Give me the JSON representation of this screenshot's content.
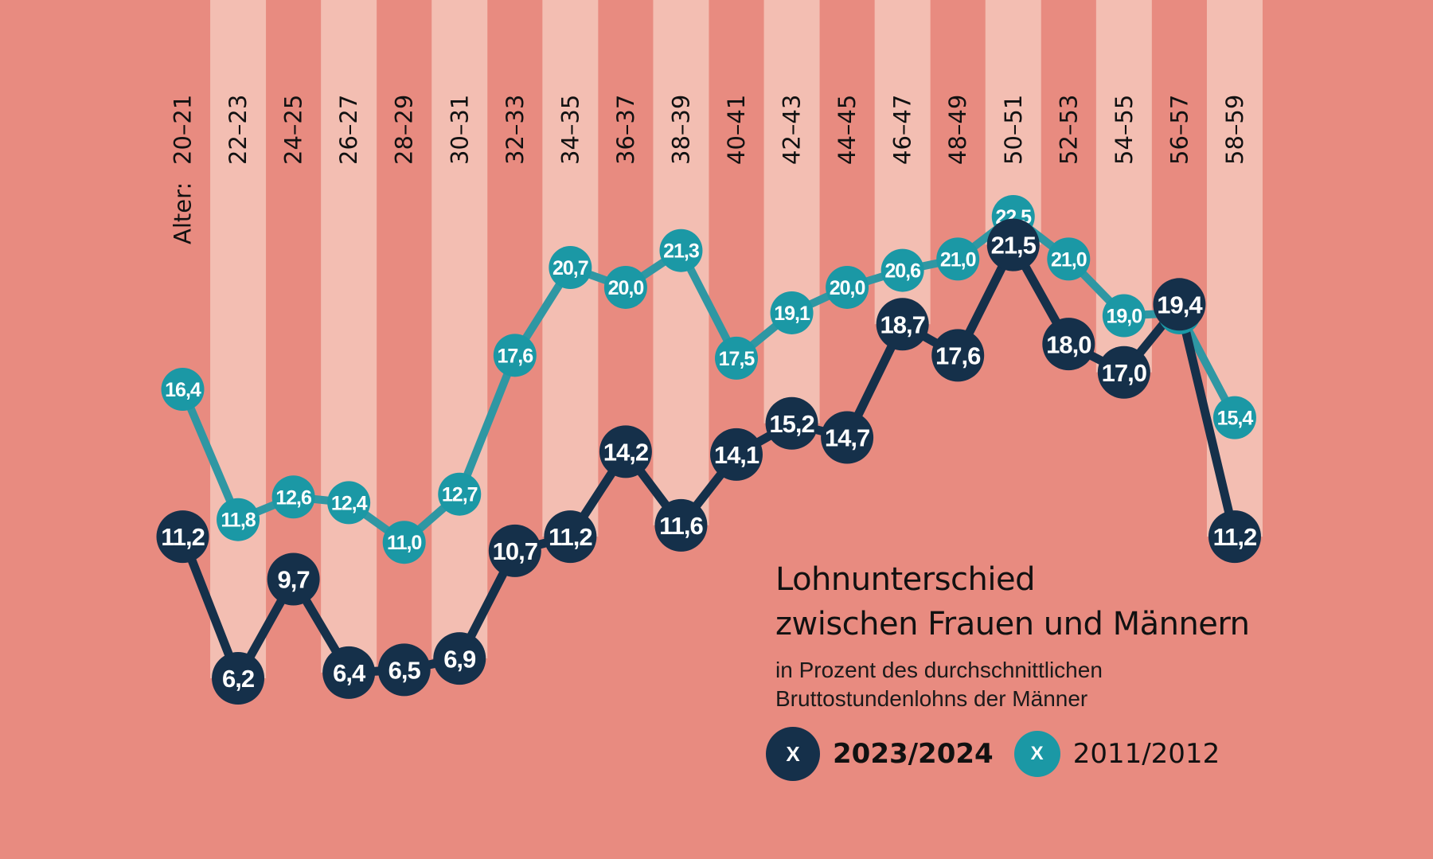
{
  "colors": {
    "background": "#e88b80",
    "stripe_light": "#f3beb2",
    "series_2023": "#15304a",
    "series_2011": "#1b98a5",
    "line_2011": "#2f97a3"
  },
  "chart_data": {
    "type": "line",
    "title": "Lohnunterschied zwischen Frauen und Männern",
    "subtitle": "in Prozent des durchschnittlichen Bruttostundenlohns der Männer",
    "xlabel": "Alter:",
    "ylabel": "",
    "ylim": [
      6.2,
      22.5
    ],
    "grid": false,
    "legend_position": "bottom-right",
    "categories": [
      "20–21",
      "22–23",
      "24–25",
      "26–27",
      "28–29",
      "30–31",
      "32–33",
      "34–35",
      "36–37",
      "38–39",
      "40–41",
      "42–43",
      "44–45",
      "46–47",
      "48–49",
      "50–51",
      "52–53",
      "54–55",
      "56–57",
      "58–59"
    ],
    "series": [
      {
        "name": "2011/2012",
        "values": [
          16.4,
          11.8,
          12.6,
          12.4,
          11.0,
          12.7,
          17.6,
          20.7,
          20.0,
          21.3,
          17.5,
          19.1,
          20.0,
          20.6,
          21.0,
          22.5,
          21.0,
          19.0,
          19.1,
          15.4
        ],
        "labels": [
          "16,4",
          "11,8",
          "12,6",
          "12,4",
          "11,0",
          "12,7",
          "17,6",
          "20,7",
          "20,0",
          "21,3",
          "17,5",
          "19,1",
          "20,0",
          "20,6",
          "21,0",
          "22,5",
          "21,0",
          "19,0",
          "19,1",
          "15,4"
        ]
      },
      {
        "name": "2023/2024",
        "values": [
          11.2,
          6.2,
          9.7,
          6.4,
          6.5,
          6.9,
          10.7,
          11.2,
          14.2,
          11.6,
          14.1,
          15.2,
          14.7,
          18.7,
          17.6,
          21.5,
          18.0,
          17.0,
          19.4,
          11.2
        ],
        "labels": [
          "11,2",
          "6,2",
          "9,7",
          "6,4",
          "6,5",
          "6,9",
          "10,7",
          "11,2",
          "14,2",
          "11,6",
          "14,1",
          "15,2",
          "14,7",
          "18,7",
          "17,6",
          "21,5",
          "18,0",
          "17,0",
          "19,4",
          "11,2"
        ]
      }
    ]
  },
  "legend": {
    "marker_glyph": "X",
    "items": [
      {
        "label": "2023/2024"
      },
      {
        "label": "2011/2012"
      }
    ]
  },
  "title_lines": [
    "Lohnunterschied",
    "zwischen Frauen und Männern"
  ],
  "subtitle_lines": [
    "in Prozent des durchschnittlichen",
    "Bruttostundenlohns der Männer"
  ]
}
